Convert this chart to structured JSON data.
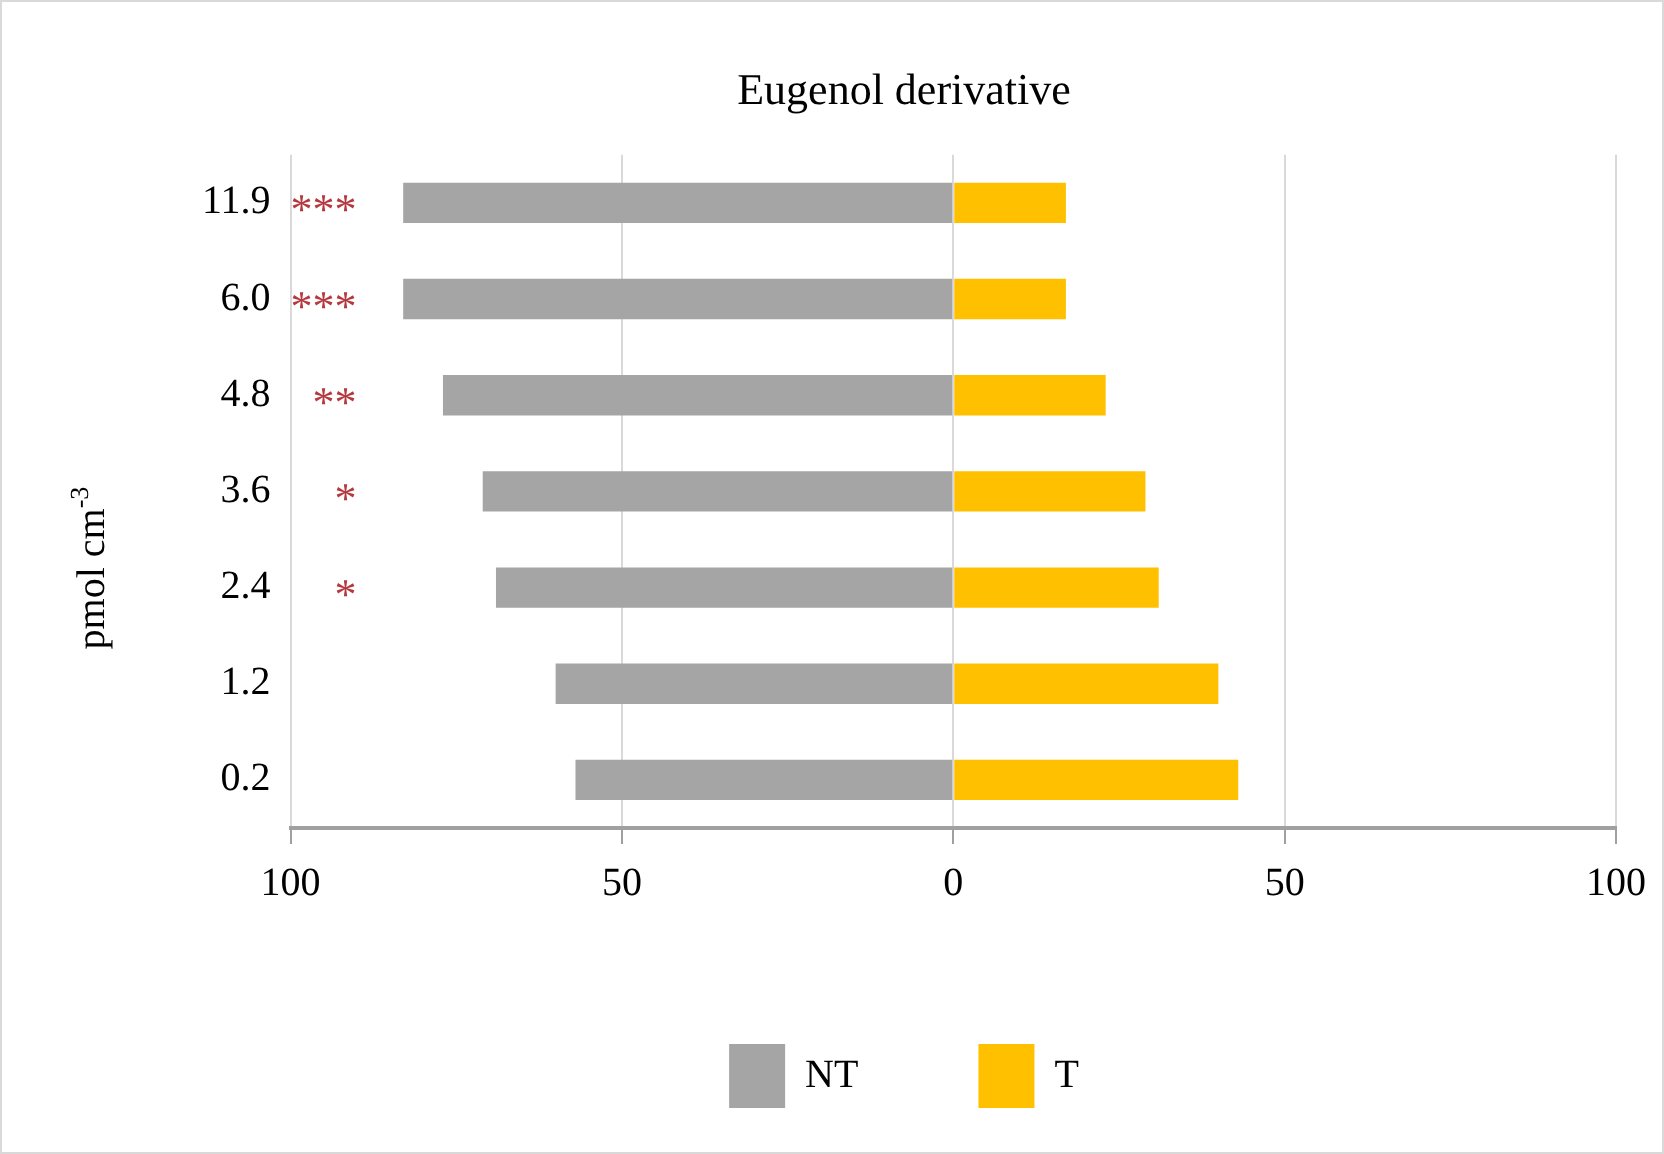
{
  "chart_data": {
    "type": "bar",
    "orientation": "horizontal",
    "stacked": true,
    "title": "Eugenol derivative",
    "ylabel": "pmol cm$^{-3}$",
    "categories": [
      "11.9",
      "6.0",
      "4.8",
      "3.6",
      "2.4",
      "1.2",
      "0.2"
    ],
    "series": [
      {
        "name": "NT",
        "color": "#a5a5a5",
        "values": [
          -83,
          -83,
          -77,
          -71,
          -69,
          -60,
          -57
        ]
      },
      {
        "name": "T",
        "color": "#ffc000",
        "values": [
          17,
          17,
          23,
          29,
          31,
          40,
          43
        ]
      }
    ],
    "xlim": [
      -100,
      100
    ],
    "xticks": [
      {
        "value": -100,
        "label": "100"
      },
      {
        "value": -50,
        "label": "50"
      },
      0,
      50,
      100
    ],
    "grid": "x",
    "legend": "bottom",
    "annotations": [
      "***",
      "***",
      "**",
      "*",
      "*"
    ]
  }
}
